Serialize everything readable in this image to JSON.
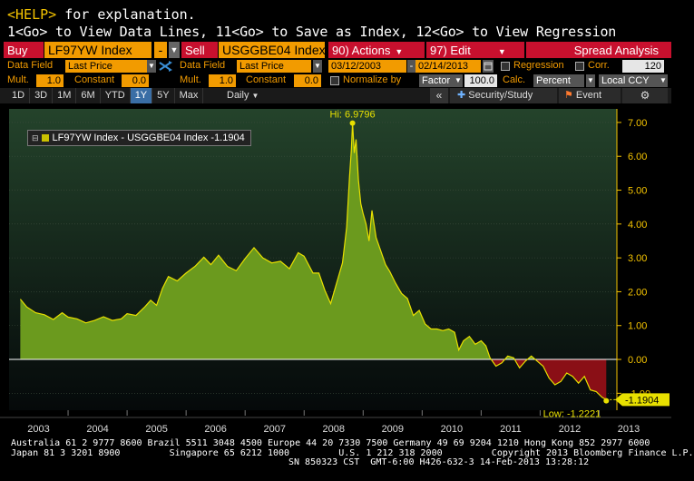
{
  "help": {
    "key": "<HELP>",
    "text": " for explanation."
  },
  "command_line": "1<Go> to View Data Lines, 11<Go> to Save as Index, 12<Go> to View Regression",
  "toolbar": {
    "buy_label": "Buy",
    "ticker1": "LF97YW Index",
    "minus": "-",
    "sell_label": "Sell",
    "ticker2": "USGGBE04 Index",
    "actions": "90) Actions",
    "edit": "97) Edit",
    "spread": "Spread Analysis"
  },
  "params": {
    "data_field_label": "Data Field",
    "data_field_1": "Last Price",
    "data_field_2": "Last Price",
    "mult_label": "Mult.",
    "mult_1": "1.0",
    "mult_2": "1.0",
    "constant_label": "Constant",
    "constant_1": "0.0",
    "constant_2": "0.0",
    "start_date": "03/12/2003",
    "end_date": "02/14/2013",
    "regression": "Regression",
    "corr": "Corr.",
    "corr_value": "120",
    "normalize": "Normalize by",
    "factor": "Factor",
    "factor_value": "100.0",
    "calc_label": "Calc.",
    "calc_value": "Percent",
    "ccy": "Local CCY"
  },
  "periods": [
    "1D",
    "3D",
    "1M",
    "6M",
    "YTD",
    "1Y",
    "5Y",
    "Max"
  ],
  "active_period": "1Y",
  "frequency": "Daily",
  "security_study": "Security/Study",
  "event": "Event",
  "legend_text": "LF97YW Index - USGGBE04 Index -1.1904",
  "colors": {
    "positive": "#6b9a1e",
    "negative": "#8a0f16",
    "line": "#e8e000",
    "axis": "#f5c400",
    "bg": "#000000"
  },
  "chart_data": {
    "type": "area",
    "x_labels": [
      "2003",
      "2004",
      "2005",
      "2006",
      "2007",
      "2008",
      "2009",
      "2010",
      "2011",
      "2012",
      "2013"
    ],
    "ylim": [
      -1.5,
      7.4
    ],
    "yticks": [
      "7.00",
      "6.00",
      "5.00",
      "4.00",
      "3.00",
      "2.00",
      "1.00",
      "0.00",
      "-1.00"
    ],
    "hi_label": "Hi: 6.9796",
    "hi_value": 6.9796,
    "low_label": "Low: -1.2221",
    "low_value": -1.2221,
    "last_value": "-1.1904",
    "series": [
      [
        2003.19,
        1.78
      ],
      [
        2003.3,
        1.55
      ],
      [
        2003.45,
        1.38
      ],
      [
        2003.6,
        1.32
      ],
      [
        2003.75,
        1.18
      ],
      [
        2003.9,
        1.38
      ],
      [
        2004.0,
        1.25
      ],
      [
        2004.15,
        1.2
      ],
      [
        2004.3,
        1.08
      ],
      [
        2004.45,
        1.15
      ],
      [
        2004.6,
        1.26
      ],
      [
        2004.75,
        1.15
      ],
      [
        2004.9,
        1.2
      ],
      [
        2005.0,
        1.35
      ],
      [
        2005.15,
        1.3
      ],
      [
        2005.3,
        1.55
      ],
      [
        2005.4,
        1.75
      ],
      [
        2005.5,
        1.6
      ],
      [
        2005.6,
        2.1
      ],
      [
        2005.7,
        2.45
      ],
      [
        2005.85,
        2.32
      ],
      [
        2006.0,
        2.55
      ],
      [
        2006.15,
        2.75
      ],
      [
        2006.3,
        3.02
      ],
      [
        2006.42,
        2.8
      ],
      [
        2006.55,
        3.08
      ],
      [
        2006.7,
        2.75
      ],
      [
        2006.85,
        2.62
      ],
      [
        2007.0,
        2.98
      ],
      [
        2007.15,
        3.3
      ],
      [
        2007.3,
        3.0
      ],
      [
        2007.45,
        2.85
      ],
      [
        2007.6,
        2.9
      ],
      [
        2007.75,
        2.68
      ],
      [
        2007.9,
        3.15
      ],
      [
        2008.0,
        3.05
      ],
      [
        2008.15,
        2.55
      ],
      [
        2008.25,
        2.55
      ],
      [
        2008.35,
        2.05
      ],
      [
        2008.45,
        1.65
      ],
      [
        2008.55,
        2.25
      ],
      [
        2008.65,
        2.85
      ],
      [
        2008.72,
        3.9
      ],
      [
        2008.77,
        5.4
      ],
      [
        2008.8,
        6.2
      ],
      [
        2008.82,
        6.9796
      ],
      [
        2008.85,
        6.1
      ],
      [
        2008.88,
        6.5
      ],
      [
        2008.92,
        5.3
      ],
      [
        2008.96,
        4.6
      ],
      [
        2009.0,
        4.3
      ],
      [
        2009.05,
        4.0
      ],
      [
        2009.1,
        3.5
      ],
      [
        2009.15,
        4.4
      ],
      [
        2009.22,
        3.6
      ],
      [
        2009.3,
        3.2
      ],
      [
        2009.38,
        2.8
      ],
      [
        2009.45,
        2.6
      ],
      [
        2009.55,
        2.25
      ],
      [
        2009.65,
        1.95
      ],
      [
        2009.75,
        1.8
      ],
      [
        2009.85,
        1.3
      ],
      [
        2009.95,
        1.45
      ],
      [
        2010.05,
        1.05
      ],
      [
        2010.15,
        0.9
      ],
      [
        2010.25,
        0.9
      ],
      [
        2010.35,
        0.85
      ],
      [
        2010.45,
        0.9
      ],
      [
        2010.55,
        0.8
      ],
      [
        2010.62,
        0.28
      ],
      [
        2010.7,
        0.55
      ],
      [
        2010.8,
        0.68
      ],
      [
        2010.9,
        0.45
      ],
      [
        2011.0,
        0.55
      ],
      [
        2011.08,
        0.4
      ],
      [
        2011.15,
        0.05
      ],
      [
        2011.25,
        -0.2
      ],
      [
        2011.35,
        -0.1
      ],
      [
        2011.45,
        0.1
      ],
      [
        2011.55,
        0.05
      ],
      [
        2011.65,
        -0.25
      ],
      [
        2011.75,
        -0.05
      ],
      [
        2011.85,
        0.1
      ],
      [
        2011.95,
        -0.05
      ],
      [
        2012.05,
        -0.2
      ],
      [
        2012.15,
        -0.55
      ],
      [
        2012.25,
        -0.75
      ],
      [
        2012.35,
        -0.65
      ],
      [
        2012.45,
        -0.4
      ],
      [
        2012.55,
        -0.5
      ],
      [
        2012.65,
        -0.7
      ],
      [
        2012.75,
        -0.5
      ],
      [
        2012.85,
        -0.9
      ],
      [
        2012.95,
        -0.95
      ],
      [
        2013.05,
        -1.12
      ],
      [
        2013.12,
        -1.19
      ]
    ]
  },
  "footer": {
    "line1": "Australia 61 2 9777 8600 Brazil 5511 3048 4500 Europe 44 20 7330 7500 Germany 49 69 9204 1210 Hong Kong 852 2977 6000",
    "line2": "Japan 81 3 3201 8900         Singapore 65 6212 1000         U.S. 1 212 318 2000         Copyright 2013 Bloomberg Finance L.P.",
    "line3": "SN 850323 CST  GMT-6:00 H426-632-3 14-Feb-2013 13:28:12"
  }
}
